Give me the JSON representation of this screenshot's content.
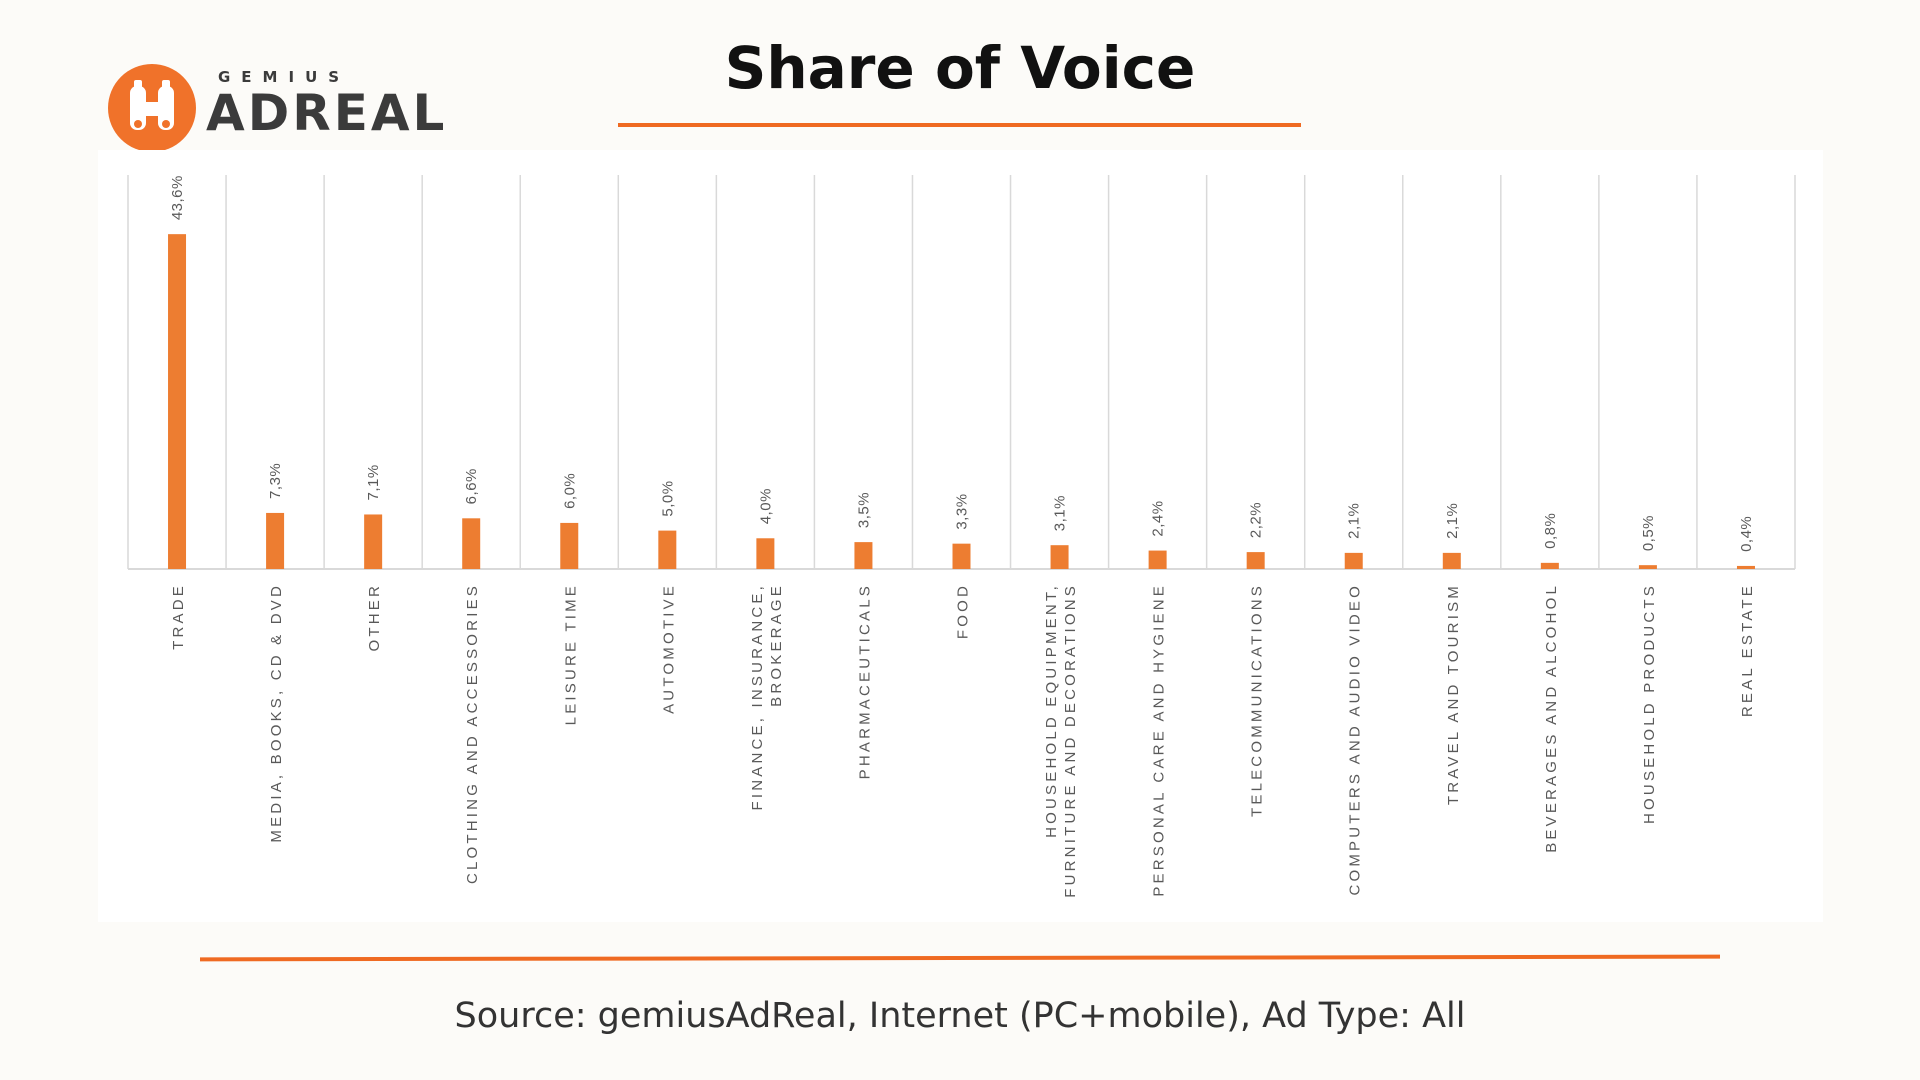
{
  "logo": {
    "top_text": "GEMIUS",
    "main_text": "ADREAL",
    "icon": "binoculars-icon",
    "accent": "#f0722a"
  },
  "title": "Share of Voice",
  "footer": {
    "source": "Source: gemiusAdReal, Internet (PC+mobile), Ad Type: All"
  },
  "colors": {
    "bar": "#ed7d31",
    "rule": "#ef6a22",
    "grid": "#d9d9d9",
    "label": "#595959"
  },
  "chart_data": {
    "type": "bar",
    "title": "",
    "xlabel": "",
    "ylabel": "",
    "ylim": [
      0,
      50
    ],
    "grid": "vertical category separators",
    "categories": [
      [
        "TRADE"
      ],
      [
        "MEDIA, BOOKS, CD & DVD"
      ],
      [
        "OTHER"
      ],
      [
        "CLOTHING AND ACCESSORIES"
      ],
      [
        "LEISURE TIME"
      ],
      [
        "AUTOMOTIVE"
      ],
      [
        "FINANCE, INSURANCE,",
        "BROKERAGE"
      ],
      [
        "PHARMACEUTICALS"
      ],
      [
        "FOOD"
      ],
      [
        "HOUSEHOLD EQUIPMENT,",
        "FURNITURE AND DECORATIONS"
      ],
      [
        "PERSONAL CARE AND HYGIENE"
      ],
      [
        "TELECOMMUNICATIONS"
      ],
      [
        "COMPUTERS AND AUDIO VIDEO"
      ],
      [
        "TRAVEL AND TOURISM"
      ],
      [
        "BEVERAGES AND ALCOHOL"
      ],
      [
        "HOUSEHOLD PRODUCTS"
      ],
      [
        "REAL ESTATE"
      ]
    ],
    "values": [
      43.6,
      7.3,
      7.1,
      6.6,
      6.0,
      5.0,
      4.0,
      3.5,
      3.3,
      3.1,
      2.4,
      2.2,
      2.1,
      2.1,
      0.8,
      0.5,
      0.4
    ],
    "data_labels": [
      "43,6%",
      "7,3%",
      "7,1%",
      "6,6%",
      "6,0%",
      "5,0%",
      "4,0%",
      "3,5%",
      "3,3%",
      "3,1%",
      "2,4%",
      "2,2%",
      "2,1%",
      "2,1%",
      "0,8%",
      "0,5%",
      "0,4%"
    ]
  }
}
